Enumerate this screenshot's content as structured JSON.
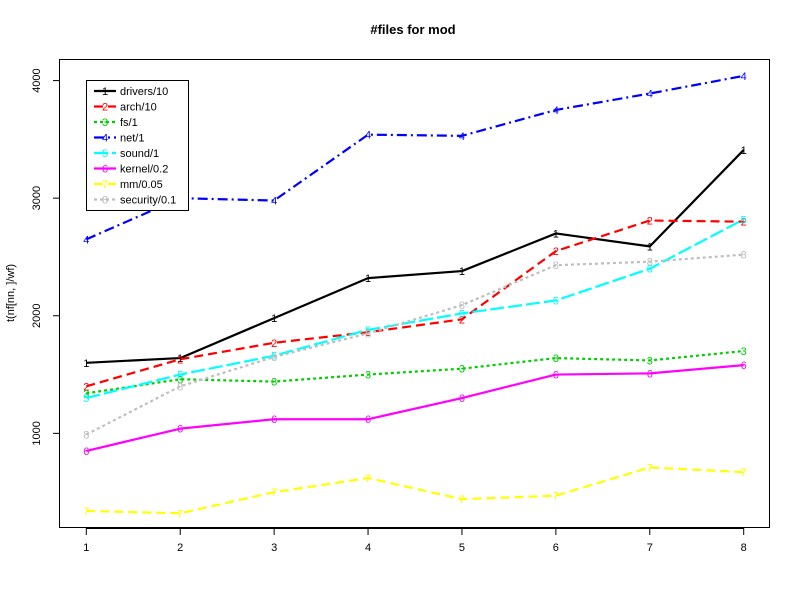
{
  "chart_data": {
    "type": "line",
    "title": "#files for mod",
    "xlabel": "",
    "ylabel": "t(nf[nn, ]/wf)",
    "x": [
      1,
      2,
      3,
      4,
      5,
      6,
      7,
      8
    ],
    "x_ticks": [
      "1",
      "2",
      "3",
      "4",
      "5",
      "6",
      "7",
      "8"
    ],
    "y_ticks": [
      "1000",
      "2000",
      "3000",
      "4000"
    ],
    "xlim": [
      0.72,
      8.28
    ],
    "ylim": [
      195,
      4175
    ],
    "grid": false,
    "legend_position": "top-left",
    "series": [
      {
        "name": "drivers/10",
        "marker": "1",
        "color": "#000000",
        "dash": "",
        "width": 2.2,
        "values": [
          1600,
          1640,
          1980,
          2320,
          2380,
          2700,
          2590,
          3410
        ]
      },
      {
        "name": "arch/10",
        "marker": "2",
        "color": "#ff0000",
        "dash": "9,5",
        "width": 2.2,
        "values": [
          1400,
          1630,
          1770,
          1860,
          1970,
          2550,
          2810,
          2800
        ]
      },
      {
        "name": "fs/1",
        "marker": "3",
        "color": "#00cd00",
        "dash": "3,3",
        "width": 2.2,
        "values": [
          1340,
          1460,
          1440,
          1500,
          1550,
          1640,
          1620,
          1700
        ]
      },
      {
        "name": "net/1",
        "marker": "4",
        "color": "#0000ff",
        "dash": "10,4,2,4",
        "width": 2.2,
        "values": [
          2650,
          3000,
          2980,
          3540,
          3530,
          3750,
          3890,
          4040
        ]
      },
      {
        "name": "sound/1",
        "marker": "5",
        "color": "#00ffff",
        "dash": "14,4",
        "width": 2.2,
        "values": [
          1300,
          1500,
          1660,
          1880,
          2020,
          2130,
          2400,
          2820
        ]
      },
      {
        "name": "kernel/0.2",
        "marker": "6",
        "color": "#ff00ff",
        "dash": "",
        "width": 2.2,
        "values": [
          850,
          1040,
          1120,
          1120,
          1300,
          1500,
          1510,
          1580
        ]
      },
      {
        "name": "mm/0.05",
        "marker": "7",
        "color": "#ffff00",
        "dash": "9,5",
        "width": 2.2,
        "values": [
          340,
          320,
          500,
          620,
          440,
          470,
          710,
          670
        ]
      },
      {
        "name": "security/0.1",
        "marker": "8",
        "color": "#bebebe",
        "dash": "3,3",
        "width": 2.2,
        "values": [
          990,
          1400,
          1650,
          1850,
          2090,
          2430,
          2460,
          2520
        ]
      }
    ]
  }
}
